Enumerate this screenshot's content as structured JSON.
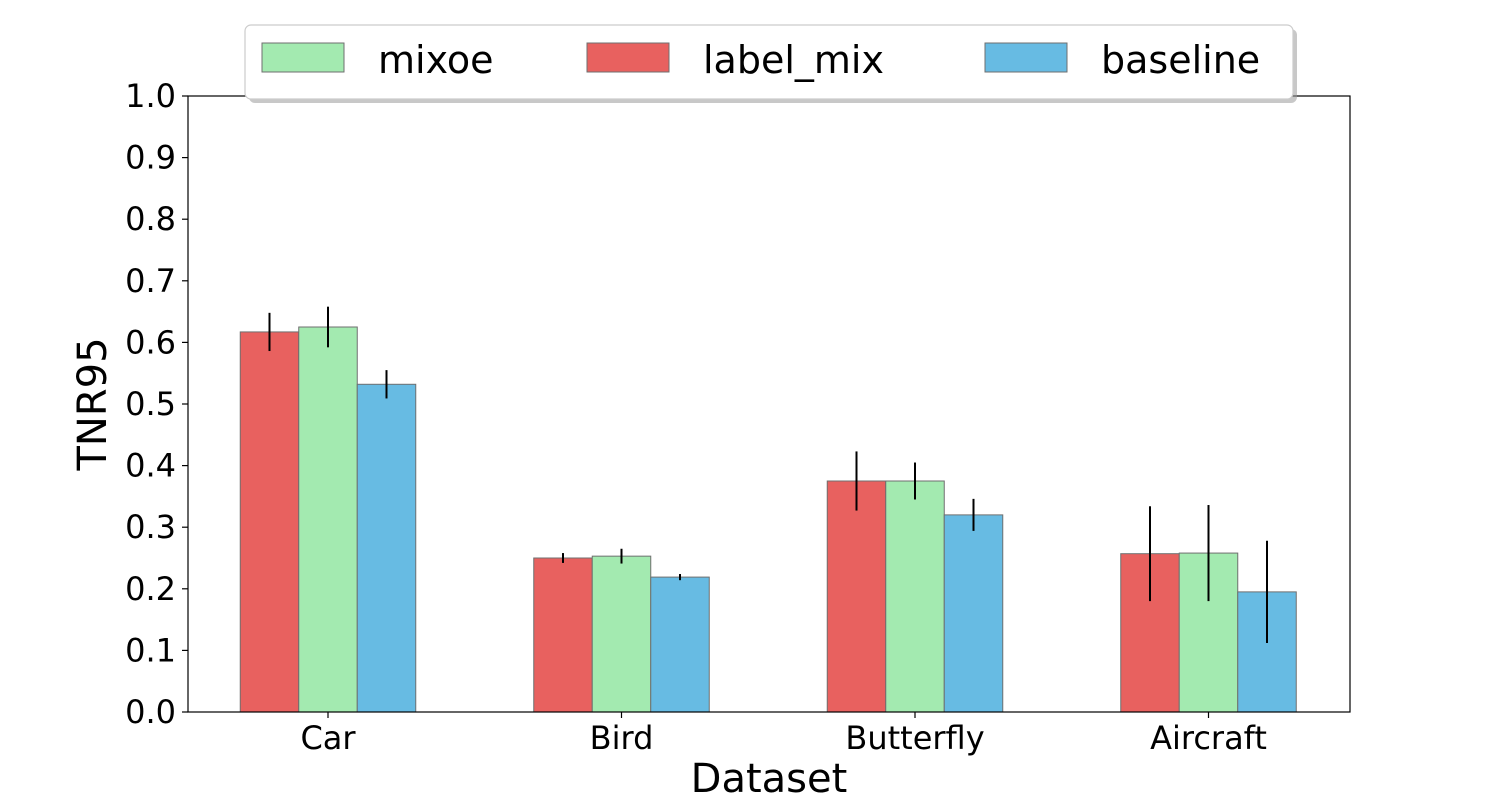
{
  "chart_data": {
    "type": "bar",
    "title": "",
    "xlabel": "Dataset",
    "ylabel": "TNR95",
    "ylim": [
      0.0,
      1.0
    ],
    "yticks": [
      "0.0",
      "0.1",
      "0.2",
      "0.3",
      "0.4",
      "0.5",
      "0.6",
      "0.7",
      "0.8",
      "0.9",
      "1.0"
    ],
    "grid": false,
    "legend_position": "top-center",
    "legend_order": [
      "mixoe",
      "label_mix",
      "baseline"
    ],
    "categories": [
      "Car",
      "Bird",
      "Butterfly",
      "Aircraft"
    ],
    "series": [
      {
        "name": "label_mix",
        "color": "#E8615F",
        "values": [
          0.617,
          0.25,
          0.375,
          0.257
        ],
        "errors": [
          0.031,
          0.008,
          0.048,
          0.077
        ]
      },
      {
        "name": "mixoe",
        "color": "#A3EAB0",
        "values": [
          0.625,
          0.253,
          0.375,
          0.258
        ],
        "errors": [
          0.033,
          0.012,
          0.03,
          0.078
        ]
      },
      {
        "name": "baseline",
        "color": "#67BBE3",
        "values": [
          0.532,
          0.219,
          0.32,
          0.195
        ],
        "errors": [
          0.023,
          0.005,
          0.026,
          0.083
        ]
      }
    ]
  }
}
